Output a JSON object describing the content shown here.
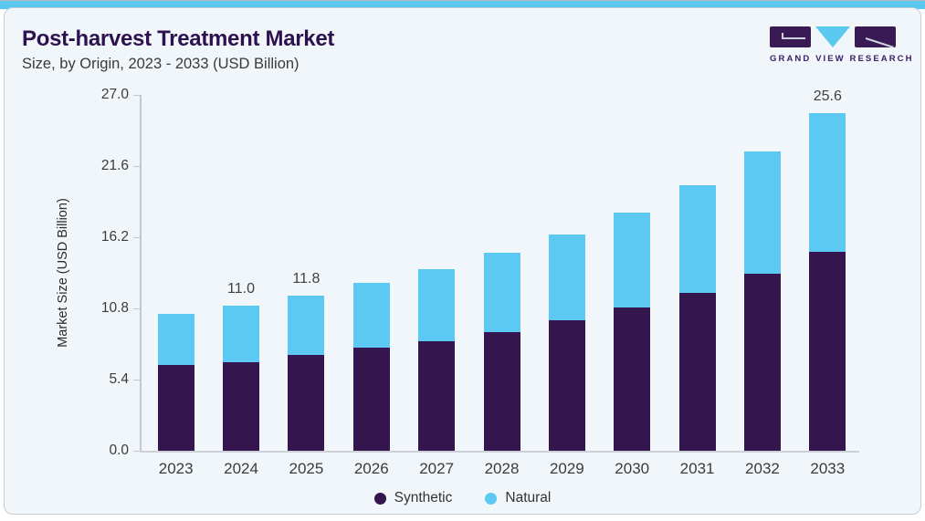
{
  "page": {
    "title": "Post-harvest Treatment Market",
    "subtitle": "Size, by Origin, 2023 - 2033 (USD Billion)",
    "brand": "GRAND VIEW RESEARCH"
  },
  "colors": {
    "accent_strip": "#5bc8f0",
    "card_background": "#f0f6fa",
    "card_border": "#c6ccd4",
    "title_text": "#2e1250",
    "axis_text": "#3b3b3b",
    "synthetic": "#35154e",
    "natural": "#5cc9f3"
  },
  "chart_data": {
    "type": "bar",
    "stacked": true,
    "title": "Post-harvest Treatment Market",
    "subtitle": "Size, by Origin, 2023 - 2033 (USD Billion)",
    "xlabel": "",
    "ylabel": "Market Size (USD Billion)",
    "ylim": [
      0,
      27
    ],
    "ytick_labels": [
      "0.0",
      "5.4",
      "10.8",
      "16.2",
      "21.6",
      "27.0"
    ],
    "grid": false,
    "legend_position": "bottom",
    "categories": [
      "2023",
      "2024",
      "2025",
      "2026",
      "2027",
      "2028",
      "2029",
      "2030",
      "2031",
      "2032",
      "2033"
    ],
    "series": [
      {
        "name": "Synthetic",
        "color": "#35154e",
        "values": [
          6.5,
          6.7,
          7.3,
          7.8,
          8.3,
          9.0,
          9.9,
          10.9,
          12.0,
          13.4,
          15.1
        ]
      },
      {
        "name": "Natural",
        "color": "#5cc9f3",
        "values": [
          3.9,
          4.3,
          4.5,
          4.9,
          5.5,
          6.0,
          6.5,
          7.2,
          8.2,
          9.3,
          10.5
        ]
      }
    ],
    "totals": [
      10.4,
      11.0,
      11.8,
      12.7,
      13.8,
      15.0,
      16.4,
      18.1,
      20.2,
      22.7,
      25.6
    ],
    "bar_labels": [
      {
        "category": "2024",
        "text": "11.0"
      },
      {
        "category": "2025",
        "text": "11.8"
      },
      {
        "category": "2033",
        "text": "25.6"
      }
    ]
  }
}
